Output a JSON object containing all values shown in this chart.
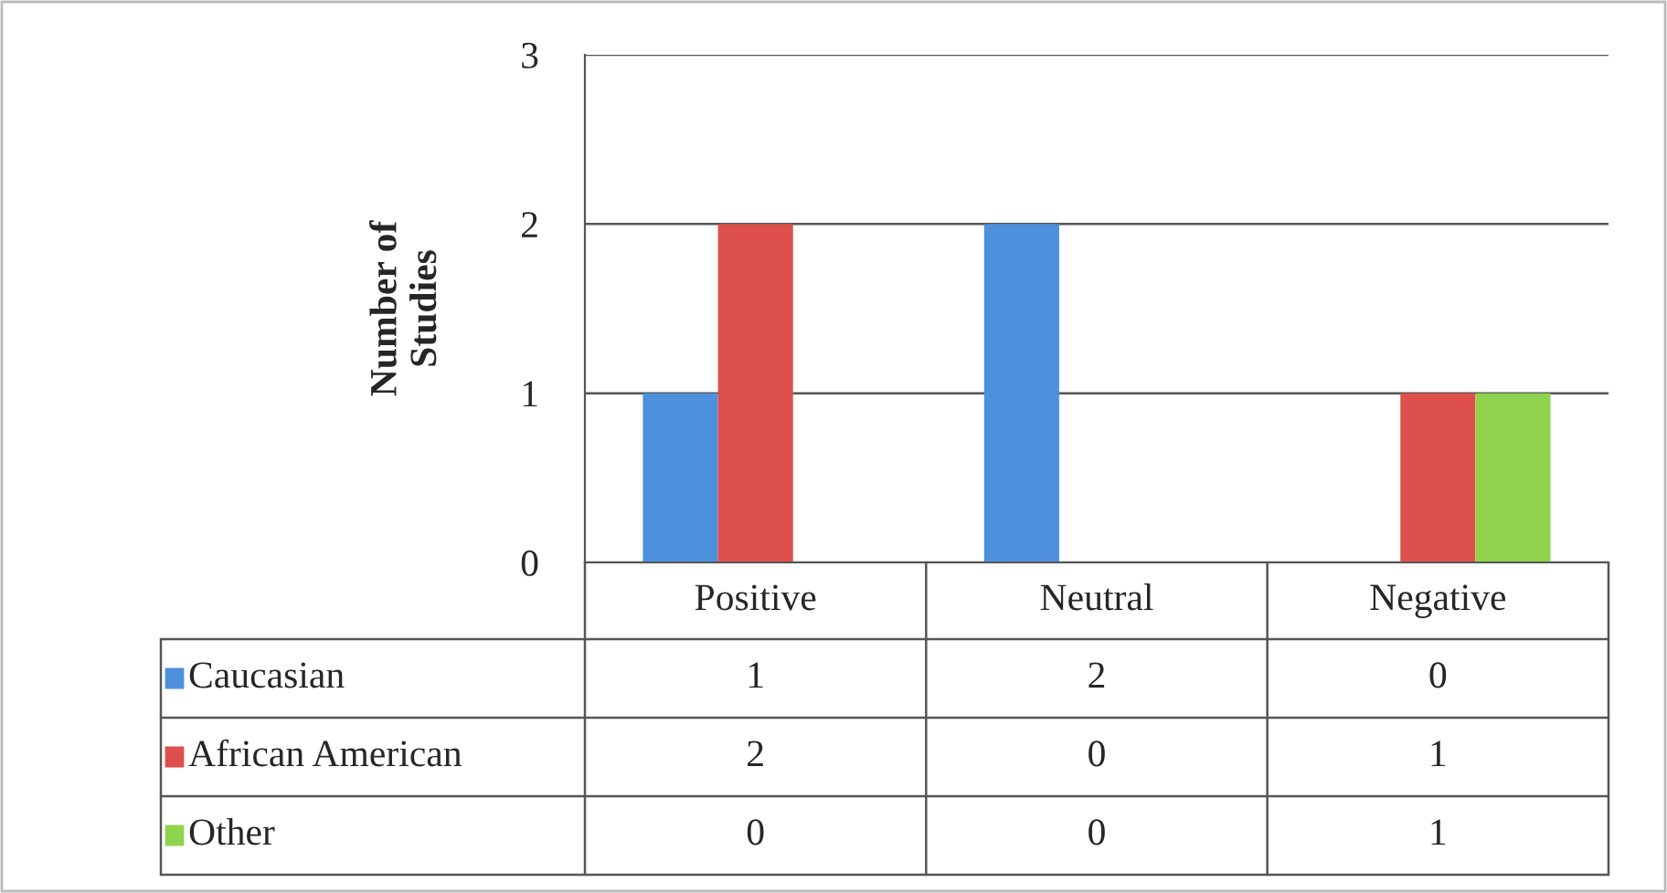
{
  "chart_data": {
    "type": "bar",
    "ylabel": "Number of\nStudies",
    "categories": [
      "Positive",
      "Neutral",
      "Negative"
    ],
    "series": [
      {
        "name": "Caucasian",
        "color": "#4f90dc",
        "values": [
          1,
          2,
          0
        ]
      },
      {
        "name": "African American",
        "color": "#de504b",
        "values": [
          2,
          0,
          1
        ]
      },
      {
        "name": "Other",
        "color": "#8fd44c",
        "values": [
          0,
          0,
          1
        ]
      }
    ],
    "ylim": [
      0,
      3
    ],
    "yticks": [
      0,
      1,
      2,
      3
    ],
    "grid": "y",
    "data_labels": true,
    "legend": "bottom"
  }
}
